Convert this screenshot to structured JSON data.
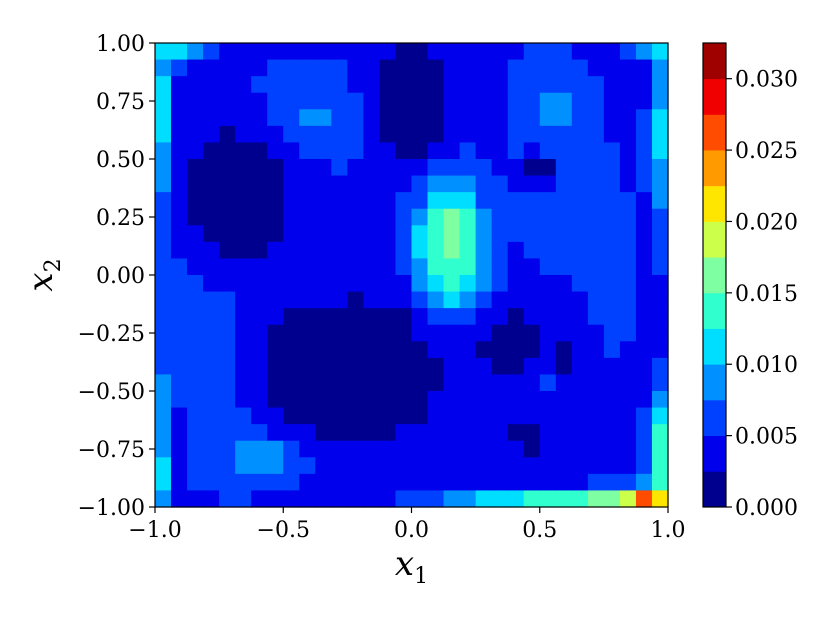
{
  "chart_data": {
    "type": "heatmap",
    "title": "",
    "xlabel": "x1",
    "ylabel": "x2",
    "xlim": [
      -1.0,
      1.0
    ],
    "ylim": [
      -1.0,
      1.0
    ],
    "x_ticks": [
      -1.0,
      -0.5,
      0.0,
      0.5,
      1.0
    ],
    "x_tick_labels": [
      "−1.0",
      "−0.5",
      "0.0",
      "0.5",
      "1.0"
    ],
    "y_ticks": [
      1.0,
      0.75,
      0.5,
      0.25,
      0.0,
      -0.25,
      -0.5,
      -0.75,
      -1.0
    ],
    "y_tick_labels": [
      "1.00",
      "0.75",
      "0.50",
      "0.25",
      "0.00",
      "−0.25",
      "−0.50",
      "−0.75",
      "−1.00"
    ],
    "colorbar": {
      "min": 0.0,
      "max": 0.0325,
      "levels": [
        0.0,
        0.0025,
        0.005,
        0.0075,
        0.01,
        0.0125,
        0.015,
        0.0175,
        0.02,
        0.0225,
        0.025,
        0.0275,
        0.03,
        0.0325
      ],
      "ticks": [
        0.0,
        0.005,
        0.01,
        0.015,
        0.02,
        0.025,
        0.03
      ],
      "tick_labels": [
        "0.000",
        "0.005",
        "0.010",
        "0.015",
        "0.020",
        "0.025",
        "0.030"
      ],
      "colors": [
        "#00008f",
        "#0000ed",
        "#0040ff",
        "#0090ff",
        "#00deff",
        "#30ffce",
        "#7dffa2",
        "#cbff4a",
        "#ffe600",
        "#ff9a00",
        "#ff4c00",
        "#f00000",
        "#9f0000"
      ]
    },
    "grid": false,
    "legend": "none",
    "field_features": [
      {
        "x": 0.15,
        "y": 0.12,
        "value": 0.018,
        "sx": 0.09,
        "sy": 0.2
      },
      {
        "x": 0.15,
        "y": 0.05,
        "value": 0.016,
        "sx": 0.07,
        "sy": 0.12
      },
      {
        "x": -0.58,
        "y": -0.78,
        "value": 0.011,
        "sx": 0.12,
        "sy": 0.08
      },
      {
        "x": -0.72,
        "y": -0.35,
        "value": 0.009,
        "sx": 0.1,
        "sy": 0.3
      },
      {
        "x": -0.4,
        "y": 0.68,
        "value": 0.0085,
        "sx": 0.18,
        "sy": 0.14
      },
      {
        "x": 0.55,
        "y": 0.72,
        "value": 0.008,
        "sx": 0.1,
        "sy": 0.14
      },
      {
        "x": 0.55,
        "y": -0.45,
        "value": 0.0085,
        "sx": 0.1,
        "sy": 0.07
      },
      {
        "x": 0.62,
        "y": 0.3,
        "value": 0.0075,
        "sx": 0.12,
        "sy": 0.18
      },
      {
        "x": -0.85,
        "y": 0.1,
        "value": 0.007,
        "sx": 0.1,
        "sy": 0.35
      },
      {
        "x": -0.3,
        "y": 0.05,
        "value": 0.006,
        "sx": 0.12,
        "sy": 0.12
      },
      {
        "x": 0.72,
        "y": -0.1,
        "value": 0.006,
        "sx": 0.1,
        "sy": 0.2
      },
      {
        "x": -0.25,
        "y": -0.4,
        "value": 0.0,
        "sx": 0.3,
        "sy": 0.25
      },
      {
        "x": -0.7,
        "y": 0.35,
        "value": 0.0,
        "sx": 0.18,
        "sy": 0.25
      },
      {
        "x": 0.0,
        "y": 0.75,
        "value": 0.0,
        "sx": 0.12,
        "sy": 0.2
      },
      {
        "x": 0.4,
        "y": -0.3,
        "value": 0.001,
        "sx": 0.12,
        "sy": 0.12
      },
      {
        "x": 0.45,
        "y": -0.7,
        "value": 0.002,
        "sx": 0.1,
        "sy": 0.08
      },
      {
        "x": 0.62,
        "y": -0.4,
        "value": 0.002,
        "sx": 0.06,
        "sy": 0.18
      },
      {
        "x": 0.5,
        "y": 0.45,
        "value": 0.001,
        "sx": 0.05,
        "sy": 0.05
      },
      {
        "x": 0.92,
        "y": -0.97,
        "value": 0.032,
        "sx": 0.06,
        "sy": 0.04
      },
      {
        "x": 0.75,
        "y": -1.0,
        "value": 0.022,
        "sx": 0.15,
        "sy": 0.04
      },
      {
        "x": 0.4,
        "y": -1.0,
        "value": 0.016,
        "sx": 0.2,
        "sy": 0.04
      },
      {
        "x": 1.0,
        "y": -0.75,
        "value": 0.018,
        "sx": 0.04,
        "sy": 0.15
      },
      {
        "x": 1.0,
        "y": 0.6,
        "value": 0.013,
        "sx": 0.04,
        "sy": 0.25
      },
      {
        "x": -1.0,
        "y": 0.7,
        "value": 0.013,
        "sx": 0.04,
        "sy": 0.3
      },
      {
        "x": -0.9,
        "y": 1.0,
        "value": 0.013,
        "sx": 0.08,
        "sy": 0.04
      },
      {
        "x": 0.95,
        "y": 1.0,
        "value": 0.013,
        "sx": 0.06,
        "sy": 0.04
      },
      {
        "x": -1.0,
        "y": -0.6,
        "value": 0.012,
        "sx": 0.03,
        "sy": 0.2
      },
      {
        "x": -1.0,
        "y": -0.9,
        "value": 0.015,
        "sx": 0.03,
        "sy": 0.1
      }
    ],
    "field_baseline": 0.0045,
    "field_grid": {
      "nx": 32,
      "ny": 28
    }
  }
}
